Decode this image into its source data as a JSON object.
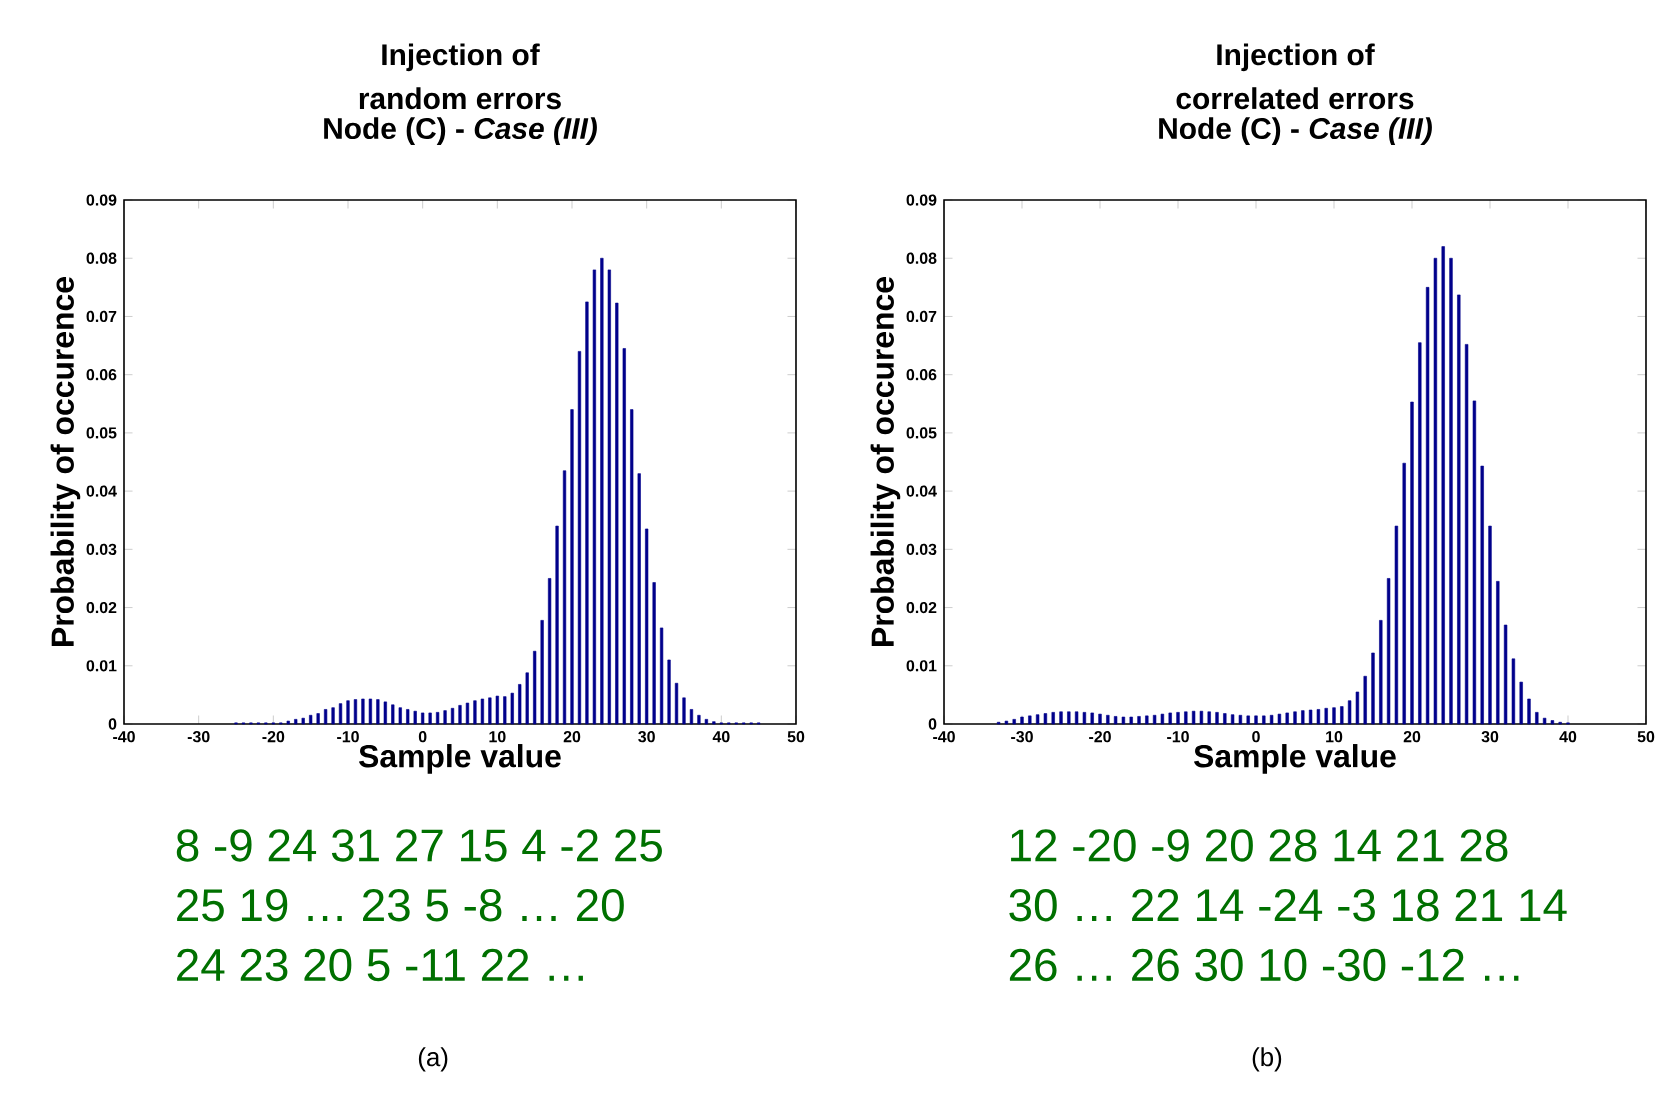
{
  "chart_data": [
    {
      "type": "bar",
      "title": "Injection of random errors",
      "subtitle": "Node (C) - *Case (III)*",
      "xlabel": "Sample value",
      "ylabel": "Probability of occurence",
      "color": "#00008b",
      "x": [
        -25,
        -24,
        -23,
        -22,
        -21,
        -20,
        -19,
        -18,
        -17,
        -16,
        -15,
        -14,
        -13,
        -12,
        -11,
        -10,
        -9,
        -8,
        -7,
        -6,
        -5,
        -4,
        -3,
        -2,
        -1,
        0,
        1,
        2,
        3,
        4,
        5,
        6,
        7,
        8,
        9,
        10,
        11,
        12,
        13,
        14,
        15,
        16,
        17,
        18,
        19,
        20,
        21,
        22,
        23,
        24,
        25,
        26,
        27,
        28,
        29,
        30,
        31,
        32,
        33,
        34,
        35,
        36,
        37,
        38,
        39,
        40,
        41,
        42,
        43,
        44,
        45
      ],
      "values": [
        0.0002,
        0.0002,
        0.0002,
        0.0002,
        0.0002,
        0.0002,
        0.0002,
        0.0005,
        0.0008,
        0.001,
        0.0015,
        0.0018,
        0.0025,
        0.0028,
        0.0035,
        0.004,
        0.0042,
        0.0043,
        0.0043,
        0.0042,
        0.0038,
        0.0033,
        0.0028,
        0.0025,
        0.0022,
        0.0019,
        0.0019,
        0.002,
        0.0023,
        0.0027,
        0.0032,
        0.0036,
        0.004,
        0.0043,
        0.0045,
        0.0048,
        0.0047,
        0.0053,
        0.0068,
        0.0088,
        0.0125,
        0.0178,
        0.025,
        0.034,
        0.0435,
        0.054,
        0.064,
        0.0725,
        0.078,
        0.08,
        0.078,
        0.0723,
        0.0645,
        0.054,
        0.043,
        0.0335,
        0.0243,
        0.0165,
        0.011,
        0.007,
        0.0045,
        0.0025,
        0.0015,
        0.0008,
        0.0004,
        0.0002,
        0.0002,
        0.0002,
        0.0002,
        0.0002,
        0.0002
      ],
      "xlim": [
        -40,
        50
      ],
      "ylim": [
        0,
        0.09
      ],
      "xticks": [
        -40,
        -30,
        -20,
        -10,
        0,
        10,
        20,
        30,
        40,
        50
      ],
      "yticks": [
        0,
        0.01,
        0.02,
        0.03,
        0.04,
        0.05,
        0.06,
        0.07,
        0.08,
        0.09
      ],
      "grid": false,
      "annotations": [
        "8 -9 24 31 27 15 4 -2 25",
        "25 19 … 23 5 -8 … 20",
        "24 23 20 5 -11 22 …",
        "(a)"
      ]
    },
    {
      "type": "bar",
      "title": "Injection of correlated errors",
      "subtitle": "Node (C) - *Case (III)*",
      "xlabel": "Sample value",
      "ylabel": "Probability of occurence",
      "color": "#00008b",
      "x": [
        -33,
        -32,
        -31,
        -30,
        -29,
        -28,
        -27,
        -26,
        -25,
        -24,
        -23,
        -22,
        -21,
        -20,
        -19,
        -18,
        -17,
        -16,
        -15,
        -14,
        -13,
        -12,
        -11,
        -10,
        -9,
        -8,
        -7,
        -6,
        -5,
        -4,
        -3,
        -2,
        -1,
        0,
        1,
        2,
        3,
        4,
        5,
        6,
        7,
        8,
        9,
        10,
        11,
        12,
        13,
        14,
        15,
        16,
        17,
        18,
        19,
        20,
        21,
        22,
        23,
        24,
        25,
        26,
        27,
        28,
        29,
        30,
        31,
        32,
        33,
        34,
        35,
        36,
        37,
        38,
        39,
        40
      ],
      "values": [
        0.0003,
        0.0005,
        0.0008,
        0.0012,
        0.0014,
        0.0016,
        0.0018,
        0.002,
        0.0021,
        0.0021,
        0.0021,
        0.002,
        0.0019,
        0.0017,
        0.0015,
        0.0013,
        0.0012,
        0.0012,
        0.0013,
        0.0014,
        0.0015,
        0.0017,
        0.0019,
        0.002,
        0.0021,
        0.0022,
        0.0022,
        0.0021,
        0.002,
        0.0018,
        0.0016,
        0.0015,
        0.0014,
        0.0014,
        0.0014,
        0.0015,
        0.0017,
        0.0019,
        0.0021,
        0.0023,
        0.0024,
        0.0025,
        0.0027,
        0.0028,
        0.003,
        0.004,
        0.0055,
        0.0082,
        0.0122,
        0.0178,
        0.025,
        0.034,
        0.0448,
        0.0553,
        0.0655,
        0.075,
        0.08,
        0.082,
        0.08,
        0.0737,
        0.0652,
        0.0555,
        0.0443,
        0.034,
        0.0245,
        0.017,
        0.0112,
        0.0072,
        0.0043,
        0.002,
        0.001,
        0.0006,
        0.0003,
        0.0002
      ],
      "xlim": [
        -40,
        50
      ],
      "ylim": [
        0,
        0.09
      ],
      "xticks": [
        -40,
        -30,
        -20,
        -10,
        0,
        10,
        20,
        30,
        40,
        50
      ],
      "yticks": [
        0,
        0.01,
        0.02,
        0.03,
        0.04,
        0.05,
        0.06,
        0.07,
        0.08,
        0.09
      ],
      "grid": false,
      "annotations": [
        "12 -20 -9 20 28 14 21 28",
        "30 … 22 14 -24 -3 18 21 14",
        "26 … 26 30 10 -30 -12 …",
        "(b)"
      ]
    }
  ]
}
